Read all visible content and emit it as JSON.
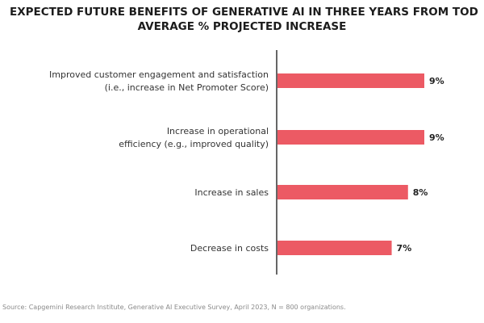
{
  "chart_data": {
    "type": "bar",
    "orientation": "horizontal",
    "title": "EXPECTED FUTURE BENEFITS OF GENERATIVE AI IN THREE YEARS FROM TOD",
    "subtitle": "AVERAGE % PROJECTED INCREASE",
    "categories": [
      [
        "Improved customer engagement and satisfaction",
        "(i.e., increase in Net Promoter Score)"
      ],
      [
        "Increase in operational",
        "efficiency (e.g., improved quality)"
      ],
      [
        "Increase in sales"
      ],
      [
        "Decrease in costs"
      ]
    ],
    "values": [
      9,
      9,
      8,
      7
    ],
    "value_labels": [
      "9%",
      "9%",
      "8%",
      "7%"
    ],
    "xlim": [
      0,
      9
    ],
    "bar_color": "#ec5a64",
    "axis_color": "#333333"
  },
  "source": "Source: Capgemini Research Institute, Generative AI Executive Survey, April 2023, N = 800 organizations."
}
